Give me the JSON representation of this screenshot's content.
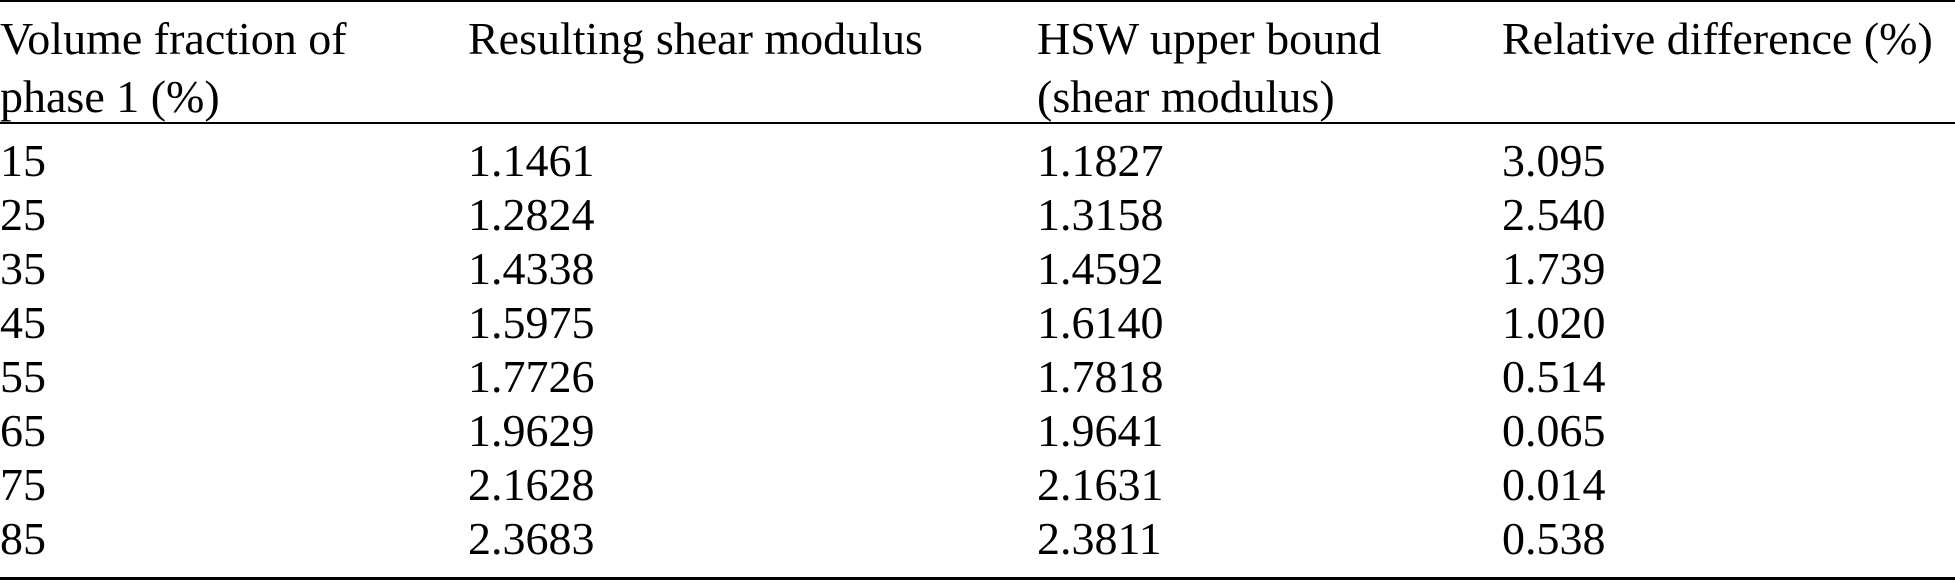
{
  "table": {
    "headers": [
      [
        "Volume fraction of",
        "phase 1 (%)"
      ],
      [
        "Resulting shear modulus",
        ""
      ],
      [
        "HSW upper bound",
        "(shear modulus)"
      ],
      [
        "Relative difference (%)",
        ""
      ]
    ],
    "rows": [
      [
        "15",
        "1.1461",
        "1.1827",
        "3.095"
      ],
      [
        "25",
        "1.2824",
        "1.3158",
        "2.540"
      ],
      [
        "35",
        "1.4338",
        "1.4592",
        "1.739"
      ],
      [
        "45",
        "1.5975",
        "1.6140",
        "1.020"
      ],
      [
        "55",
        "1.7726",
        "1.7818",
        "0.514"
      ],
      [
        "65",
        "1.9629",
        "1.9641",
        "0.065"
      ],
      [
        "75",
        "2.1628",
        "2.1631",
        "0.014"
      ],
      [
        "85",
        "2.3683",
        "2.3811",
        "0.538"
      ]
    ]
  }
}
